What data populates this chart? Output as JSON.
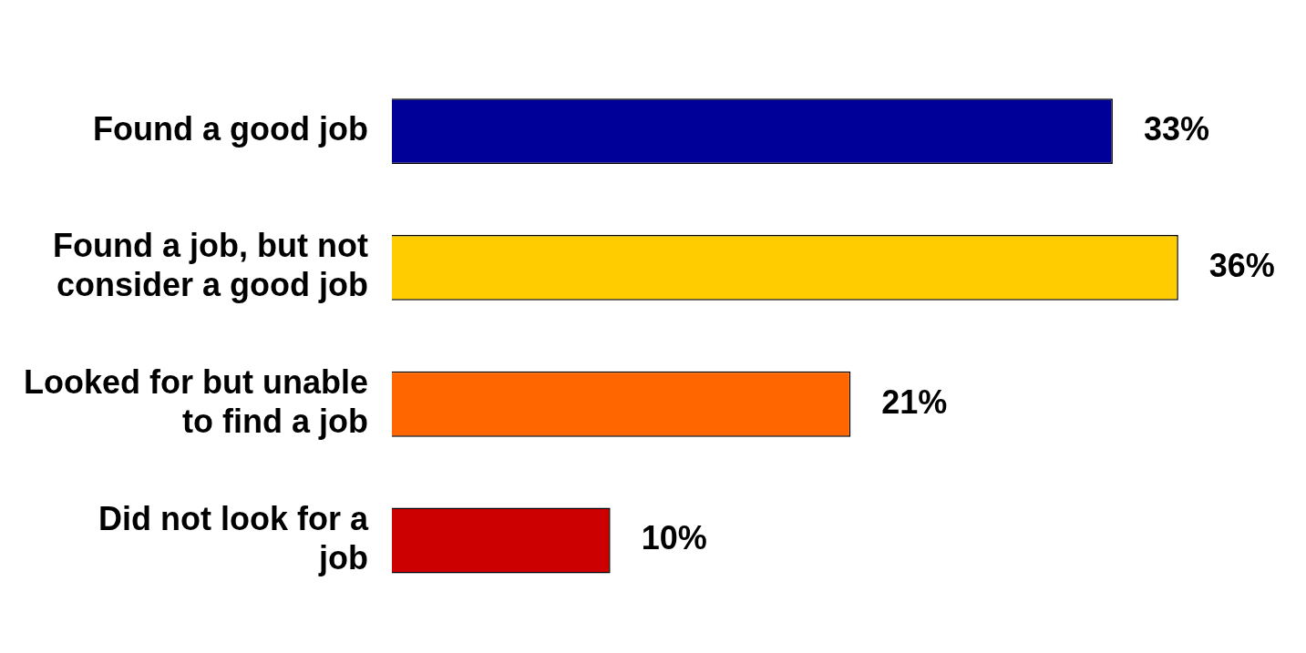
{
  "chart_data": {
    "type": "bar",
    "orientation": "horizontal",
    "categories": [
      "Found a good job",
      "Found a job, but not consider a good job",
      "Looked for but unable to find a job",
      "Did not look for a job"
    ],
    "values": [
      33,
      36,
      21,
      10
    ],
    "colors": [
      "#000099",
      "#ffcc00",
      "#ff6600",
      "#cc0000"
    ],
    "value_labels": [
      "33%",
      "36%",
      "21%",
      "10%"
    ],
    "legend": false
  }
}
